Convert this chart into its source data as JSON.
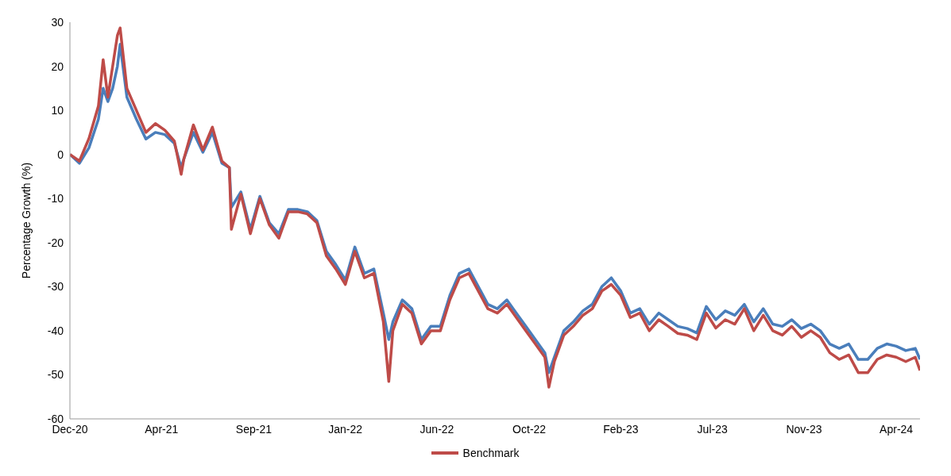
{
  "chart_data": {
    "type": "line",
    "ylabel": "Percentage Growth (%)",
    "x": [
      "2020-12-07",
      "2020-12-21",
      "2021-01-04",
      "2021-01-18",
      "2021-01-25",
      "2021-02-01",
      "2021-02-08",
      "2021-02-15",
      "2021-02-19",
      "2021-03-01",
      "2021-03-15",
      "2021-03-29",
      "2021-04-12",
      "2021-04-26",
      "2021-05-10",
      "2021-05-20",
      "2021-05-24",
      "2021-06-07",
      "2021-06-21",
      "2021-07-05",
      "2021-07-19",
      "2021-07-30",
      "2021-08-02",
      "2021-08-16",
      "2021-08-30",
      "2021-09-13",
      "2021-09-27",
      "2021-10-11",
      "2021-10-25",
      "2021-11-08",
      "2021-11-22",
      "2021-12-06",
      "2021-12-20",
      "2022-01-03",
      "2022-01-17",
      "2022-01-31",
      "2022-02-14",
      "2022-02-28",
      "2022-03-14",
      "2022-03-22",
      "2022-03-28",
      "2022-04-11",
      "2022-04-25",
      "2022-05-09",
      "2022-05-23",
      "2022-06-06",
      "2022-06-20",
      "2022-07-04",
      "2022-07-18",
      "2022-08-01",
      "2022-08-15",
      "2022-08-29",
      "2022-09-12",
      "2022-09-26",
      "2022-10-10",
      "2022-10-24",
      "2022-11-07",
      "2022-11-13",
      "2022-11-21",
      "2022-12-05",
      "2022-12-19",
      "2023-01-02",
      "2023-01-16",
      "2023-01-30",
      "2023-02-13",
      "2023-02-27",
      "2023-03-13",
      "2023-03-27",
      "2023-04-10",
      "2023-04-24",
      "2023-05-08",
      "2023-05-22",
      "2023-06-05",
      "2023-06-19",
      "2023-07-03",
      "2023-07-17",
      "2023-07-31",
      "2023-08-14",
      "2023-08-28",
      "2023-09-11",
      "2023-09-25",
      "2023-10-09",
      "2023-10-23",
      "2023-11-06",
      "2023-11-20",
      "2023-12-04",
      "2023-12-18",
      "2024-01-01",
      "2024-01-15",
      "2024-01-29",
      "2024-02-12",
      "2024-02-26",
      "2024-03-11",
      "2024-03-25",
      "2024-04-08",
      "2024-04-22",
      "2024-05-06",
      "2024-05-13"
    ],
    "series": [
      {
        "color": "#4a7ebb",
        "values": [
          0,
          -2,
          1.5,
          8,
          15,
          12,
          15,
          20,
          25,
          13,
          8,
          3.5,
          5,
          4.5,
          2.5,
          -3,
          -1,
          5,
          0.5,
          5,
          -2,
          -3,
          -12,
          -8.5,
          -17,
          -9.5,
          -15.5,
          -18,
          -12.5,
          -12.5,
          -13,
          -15,
          -22,
          -25,
          -28.5,
          -21,
          -27,
          -26,
          -36,
          -42,
          -38,
          -33,
          -35,
          -42,
          -39,
          -39,
          -32,
          -27,
          -26,
          -30,
          -34,
          -35,
          -33,
          -36,
          -39,
          -42,
          -45,
          -49.5,
          -46,
          -40,
          -38,
          -35.5,
          -34,
          -30,
          -28,
          -31,
          -36,
          -35,
          -38.5,
          -36,
          -37.5,
          -39,
          -39.5,
          -40.5,
          -34.5,
          -37.5,
          -35.5,
          -36.5,
          -34,
          -38,
          -35,
          -38.5,
          -39,
          -37.5,
          -39.5,
          -38.5,
          -40,
          -43,
          -44,
          -43,
          -46.5,
          -46.5,
          -44,
          -43,
          -43.5,
          -44.5,
          -44,
          -46.5
        ]
      },
      {
        "name": "Benchmark",
        "color": "#be4b48",
        "values": [
          0,
          -1.5,
          3.6,
          11,
          21.5,
          13,
          20,
          27,
          28.7,
          15,
          10,
          5,
          7,
          5.5,
          3,
          -4.5,
          -1,
          6.7,
          1,
          6.2,
          -1.5,
          -3,
          -17,
          -9,
          -18,
          -10,
          -16,
          -19,
          -13,
          -13,
          -13.5,
          -15.5,
          -23,
          -26,
          -29.5,
          -22,
          -28,
          -27,
          -38,
          -51.5,
          -40,
          -34,
          -36,
          -43,
          -40,
          -40,
          -33,
          -28,
          -27,
          -31,
          -35,
          -36,
          -34,
          -37,
          -40,
          -43,
          -46,
          -52.8,
          -47,
          -41,
          -39,
          -36.5,
          -35,
          -31,
          -29.5,
          -32,
          -37,
          -36,
          -40,
          -37.5,
          -39,
          -40.6,
          -41,
          -42,
          -36,
          -39.4,
          -37.5,
          -38.5,
          -35,
          -40,
          -36.5,
          -40,
          -41,
          -39,
          -41.5,
          -40,
          -41.5,
          -45,
          -46.5,
          -45.5,
          -49.5,
          -49.5,
          -46.5,
          -45.5,
          -46,
          -47,
          -46,
          -49
        ]
      }
    ],
    "xlim": [
      "2020-12-07",
      "2024-05-13"
    ],
    "xticks": [
      {
        "value": "2020-12-07",
        "label": "Dec-20"
      },
      {
        "value": "2021-04-21",
        "label": "Apr-21"
      },
      {
        "value": "2021-09-04",
        "label": "Sep-21"
      },
      {
        "value": "2022-01-17",
        "label": "Jan-22"
      },
      {
        "value": "2022-06-01",
        "label": "Jun-22"
      },
      {
        "value": "2022-10-15",
        "label": "Oct-22"
      },
      {
        "value": "2023-02-27",
        "label": "Feb-23"
      },
      {
        "value": "2023-07-12",
        "label": "Jul-23"
      },
      {
        "value": "2023-11-24",
        "label": "Nov-23"
      },
      {
        "value": "2024-04-08",
        "label": "Apr-24"
      }
    ],
    "ylim": [
      -60,
      30
    ],
    "yticks": [
      -60,
      -50,
      -40,
      -30,
      -20,
      -10,
      0,
      10,
      20,
      30
    ],
    "grid": false,
    "legend": "bottom",
    "marker": "none",
    "line_style": "solid"
  }
}
